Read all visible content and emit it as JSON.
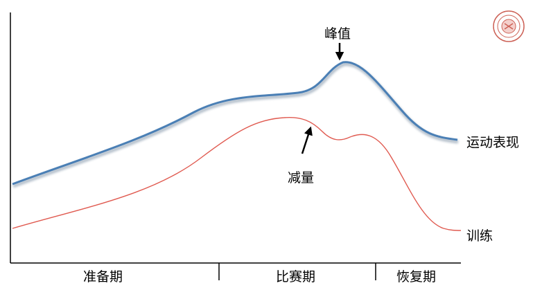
{
  "labels": {
    "peak": "峰值",
    "taper": "减量",
    "performance": "运动表现",
    "training": "训练"
  },
  "phases": [
    "准备期",
    "比赛期",
    "恢复期"
  ],
  "colors": {
    "performance_line": "#4a7fb5",
    "training_line": "#e05a50",
    "axis": "#000000",
    "logo": "#c0392b"
  },
  "icons": [
    "university-seal-logo"
  ]
}
